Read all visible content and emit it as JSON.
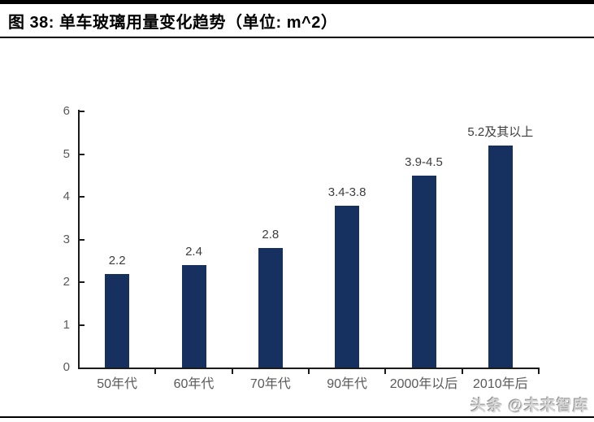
{
  "header": {
    "title": "图 38:  单车玻璃用量变化趋势（单位: m^2）"
  },
  "watermark": {
    "text": "头条 @未来智库"
  },
  "colors": {
    "bar": "#16305F",
    "axis": "#1a1a1a",
    "tick_label": "#595959",
    "data_label": "#3d3d3d",
    "title": "#000000",
    "watermark": "#d6d6d6"
  },
  "chart_data": {
    "type": "bar",
    "title": "单车玻璃用量变化趋势",
    "unit": "m^2",
    "categories": [
      "50年代",
      "60年代",
      "70年代",
      "90年代",
      "2000年以后",
      "2010年后"
    ],
    "values": [
      2.2,
      2.4,
      2.8,
      3.8,
      4.5,
      5.2
    ],
    "bar_labels": [
      "2.2",
      "2.4",
      "2.8",
      "3.4-3.8",
      "3.9-4.5",
      "5.2及其以上"
    ],
    "xlabel": "",
    "ylabel": "",
    "ylim": [
      0,
      6
    ],
    "yticks": [
      0,
      1,
      2,
      3,
      4,
      5,
      6
    ],
    "grid": false,
    "legend": "none"
  }
}
